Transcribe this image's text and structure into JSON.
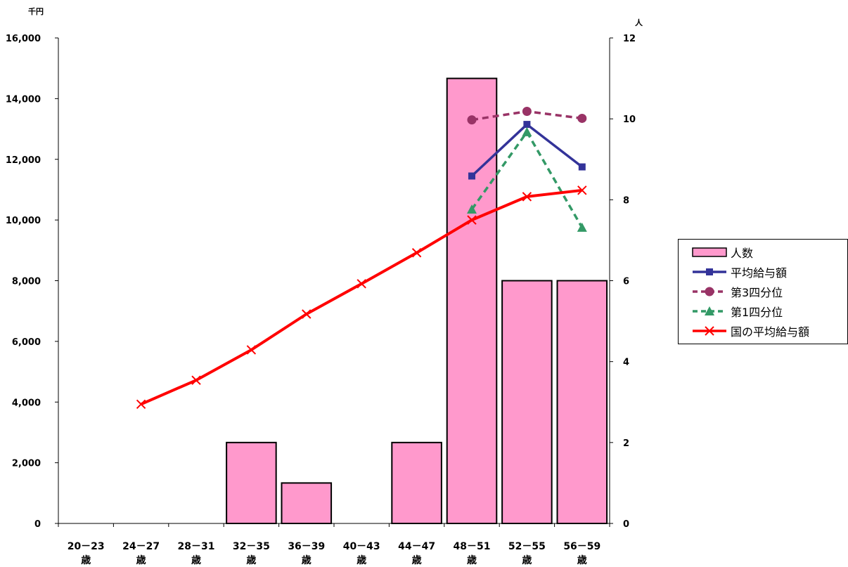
{
  "chart_data": {
    "type": "bar",
    "categories": [
      [
        "20－23",
        "歳"
      ],
      [
        "24－27",
        "歳"
      ],
      [
        "28－31",
        "歳"
      ],
      [
        "32－35",
        "歳"
      ],
      [
        "36－39",
        "歳"
      ],
      [
        "40－43",
        "歳"
      ],
      [
        "44－47",
        "歳"
      ],
      [
        "48－51",
        "歳"
      ],
      [
        "52－55",
        "歳"
      ],
      [
        "56－59",
        "歳"
      ]
    ],
    "y_left": {
      "label": "千円",
      "min": 0,
      "max": 16000,
      "ticks": [
        "0",
        "2,000",
        "4,000",
        "6,000",
        "8,000",
        "10,000",
        "12,000",
        "14,000",
        "16,000"
      ]
    },
    "y_right": {
      "label": "人",
      "min": 0,
      "max": 12,
      "ticks": [
        "0",
        "2",
        "4",
        "6",
        "8",
        "10",
        "12"
      ]
    },
    "legend_position": "right",
    "grid": false,
    "series": [
      {
        "name": "人数",
        "type": "bar",
        "axis": "right",
        "color": "#ff99cc",
        "values": [
          0,
          0,
          0,
          2,
          1,
          0,
          2,
          11,
          6,
          6
        ]
      },
      {
        "name": "平均給与額",
        "type": "line",
        "axis": "left",
        "color": "#333399",
        "dash": "solid",
        "marker": "square",
        "values": [
          null,
          null,
          null,
          null,
          null,
          null,
          null,
          11450,
          13150,
          11750
        ]
      },
      {
        "name": "第3四分位",
        "type": "line",
        "axis": "left",
        "color": "#993366",
        "dash": "dashed",
        "marker": "circle",
        "values": [
          null,
          null,
          null,
          null,
          null,
          null,
          null,
          13300,
          13580,
          13350
        ]
      },
      {
        "name": "第1四分位",
        "type": "line",
        "axis": "left",
        "color": "#339966",
        "dash": "dashed",
        "marker": "triangle",
        "values": [
          null,
          null,
          null,
          null,
          null,
          null,
          null,
          10350,
          12900,
          9750
        ]
      },
      {
        "name": "国の平均給与額",
        "type": "line",
        "axis": "left",
        "color": "#ff0000",
        "dash": "solid",
        "marker": "x",
        "values": [
          null,
          3930,
          4720,
          5720,
          6900,
          7900,
          8920,
          10000,
          10770,
          10980
        ]
      }
    ]
  }
}
